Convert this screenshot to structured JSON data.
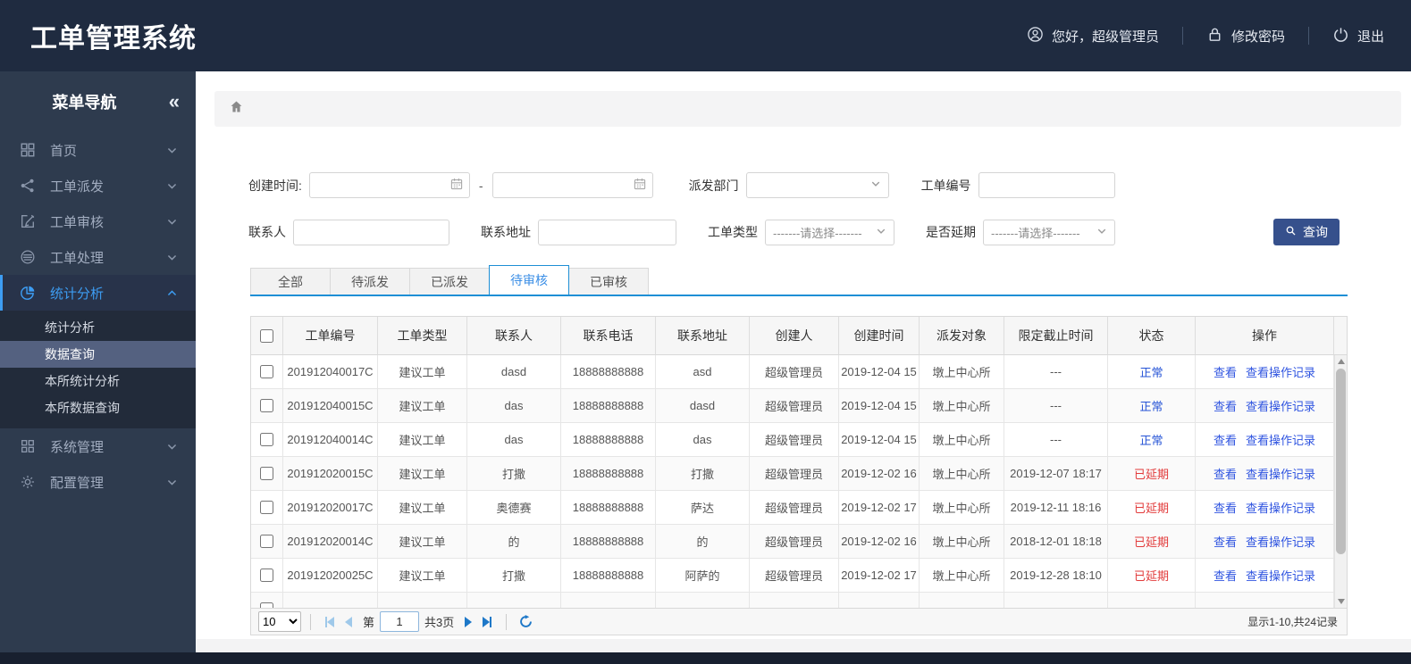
{
  "header": {
    "title": "工单管理系统",
    "user_greeting": "您好，超级管理员",
    "change_password": "修改密码",
    "logout": "退出"
  },
  "sidebar": {
    "title": "菜单导航",
    "collapse": "«",
    "menu": [
      {
        "label": "首页",
        "icon": "grid-icon",
        "state": "collapsed",
        "active": false
      },
      {
        "label": "工单派发",
        "icon": "share-icon",
        "state": "collapsed",
        "active": false
      },
      {
        "label": "工单审核",
        "icon": "edit-icon",
        "state": "collapsed",
        "active": false
      },
      {
        "label": "工单处理",
        "icon": "database-icon",
        "state": "collapsed",
        "active": false
      },
      {
        "label": "统计分析",
        "icon": "pie-icon",
        "state": "expanded",
        "active": true,
        "children": [
          {
            "label": "统计分析",
            "selected": false
          },
          {
            "label": "数据查询",
            "selected": true
          },
          {
            "label": "本所统计分析",
            "selected": false
          },
          {
            "label": "本所数据查询",
            "selected": false
          }
        ]
      },
      {
        "label": "系统管理",
        "icon": "squares-icon",
        "state": "collapsed",
        "active": false
      },
      {
        "label": "配置管理",
        "icon": "gear-icon",
        "state": "collapsed",
        "active": false
      }
    ]
  },
  "breadcrumb": {
    "icon": "home-icon"
  },
  "filters": {
    "created_time_label": "创建时间:",
    "range_separator": "-",
    "dispatch_dept_label": "派发部门",
    "order_no_label": "工单编号",
    "contact_label": "联系人",
    "contact_address_label": "联系地址",
    "order_type_label": "工单类型",
    "order_type_value": "-------请选择-------",
    "delay_label": "是否延期",
    "delay_value": "-------请选择-------",
    "search_button": "查询"
  },
  "tabs": [
    {
      "label": "全部",
      "active": false
    },
    {
      "label": "待派发",
      "active": false
    },
    {
      "label": "已派发",
      "active": false
    },
    {
      "label": "待审核",
      "active": true
    },
    {
      "label": "已审核",
      "active": false
    }
  ],
  "table": {
    "columns": [
      "工单编号",
      "工单类型",
      "联系人",
      "联系电话",
      "联系地址",
      "创建人",
      "创建时间",
      "派发对象",
      "限定截止时间",
      "状态",
      "操作"
    ],
    "action_labels": [
      "查看",
      "查看操作记录"
    ],
    "rows": [
      {
        "id": "201912040017C",
        "type": "建议工单",
        "contact": "dasd",
        "phone": "18888888888",
        "address": "asd",
        "creator": "超级管理员",
        "created": "2019-12-04 15",
        "target": "墩上中心所",
        "deadline": "---",
        "status": "正常",
        "status_kind": "normal"
      },
      {
        "id": "201912040015C",
        "type": "建议工单",
        "contact": "das",
        "phone": "18888888888",
        "address": "dasd",
        "creator": "超级管理员",
        "created": "2019-12-04 15",
        "target": "墩上中心所",
        "deadline": "---",
        "status": "正常",
        "status_kind": "normal"
      },
      {
        "id": "201912040014C",
        "type": "建议工单",
        "contact": "das",
        "phone": "18888888888",
        "address": "das",
        "creator": "超级管理员",
        "created": "2019-12-04 15",
        "target": "墩上中心所",
        "deadline": "---",
        "status": "正常",
        "status_kind": "normal"
      },
      {
        "id": "201912020015C",
        "type": "建议工单",
        "contact": "打撒",
        "phone": "18888888888",
        "address": "打撒",
        "creator": "超级管理员",
        "created": "2019-12-02 16",
        "target": "墩上中心所",
        "deadline": "2019-12-07 18:17",
        "status": "已延期",
        "status_kind": "delayed"
      },
      {
        "id": "201912020017C",
        "type": "建议工单",
        "contact": "奥德赛",
        "phone": "18888888888",
        "address": "萨达",
        "creator": "超级管理员",
        "created": "2019-12-02 17",
        "target": "墩上中心所",
        "deadline": "2019-12-11 18:16",
        "status": "已延期",
        "status_kind": "delayed"
      },
      {
        "id": "201912020014C",
        "type": "建议工单",
        "contact": "的",
        "phone": "18888888888",
        "address": "的",
        "creator": "超级管理员",
        "created": "2019-12-02 16",
        "target": "墩上中心所",
        "deadline": "2018-12-01 18:18",
        "status": "已延期",
        "status_kind": "delayed"
      },
      {
        "id": "201912020025C",
        "type": "建议工单",
        "contact": "打撒",
        "phone": "18888888888",
        "address": "阿萨的",
        "creator": "超级管理员",
        "created": "2019-12-02 17",
        "target": "墩上中心所",
        "deadline": "2019-12-28 18:10",
        "status": "已延期",
        "status_kind": "delayed"
      }
    ]
  },
  "pagination": {
    "page_size": "10",
    "page_prefix": "第",
    "current_page": "1",
    "total_pages": "共3页",
    "summary": "显示1-10,共24记录"
  },
  "colors": {
    "header_bg": "#1f2b40",
    "sidebar_bg": "#2e3b4e",
    "accent_blue": "#3d9df3",
    "tab_active_blue": "#1e8fd5",
    "button_bg": "#36508c",
    "link_blue": "#2f54e0",
    "status_normal": "#2553d6",
    "status_delayed": "#e23b3b"
  }
}
